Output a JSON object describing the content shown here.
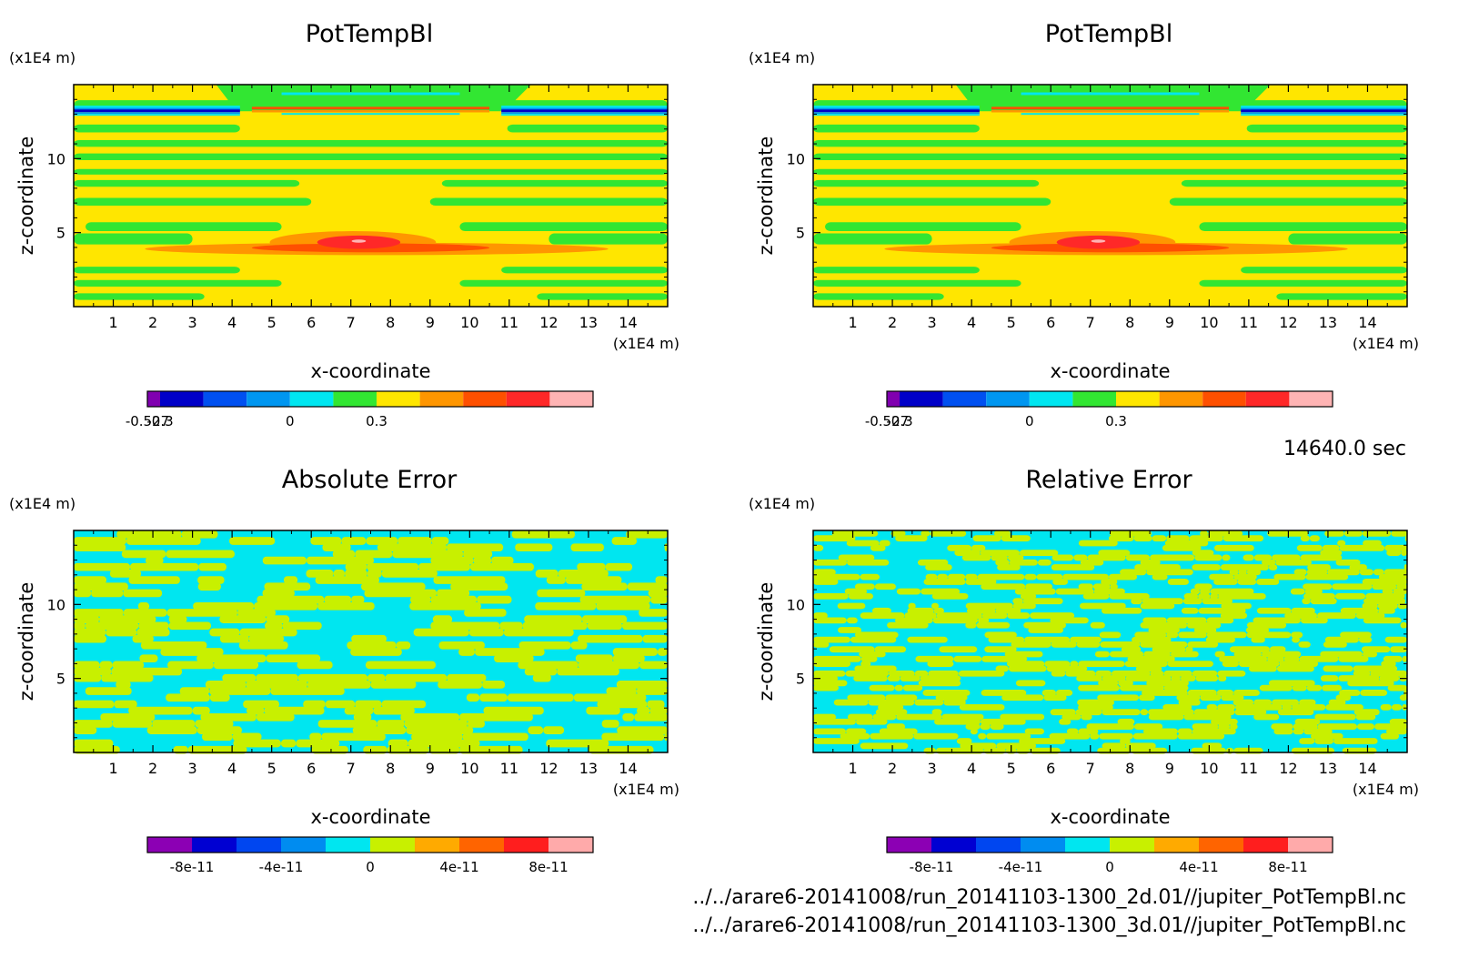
{
  "time_label": "14640.0 sec",
  "footer": {
    "file1": "../../arare6-20141008/run_20141103-1300_2d.01//jupiter_PotTempBl.nc",
    "file2": "../../arare6-20141008/run_20141103-1300_3d.01//jupiter_PotTempBl.nc"
  },
  "chart_data": [
    {
      "type": "heatmap",
      "title": "PotTempBl",
      "xlabel": "x-coordinate",
      "ylabel": "z-coordinate",
      "x_unit": "(x1E4 m)",
      "y_unit": "(x1E4 m)",
      "x_ticks": [
        "1",
        "2",
        "3",
        "4",
        "5",
        "6",
        "7",
        "8",
        "9",
        "10",
        "11",
        "12",
        "13",
        "14"
      ],
      "y_ticks": [
        "5",
        "10"
      ],
      "xlim": [
        0,
        15
      ],
      "ylim": [
        0,
        15
      ],
      "colorbar": {
        "levels": [
          -0.527,
          -0.45,
          -0.375,
          -0.3,
          -0.225,
          -0.15,
          -0.075,
          0,
          0.075,
          0.15,
          0.225,
          0.3,
          0.375,
          0.45
        ],
        "labels": [
          "-0.527",
          "-0.3",
          "0",
          "0.3"
        ],
        "colors": [
          "#8000b0",
          "#0000c8",
          "#0050f0",
          "#0096f0",
          "#00e6f0",
          "#32e632",
          "#ffe600",
          "#ff9600",
          "#ff5000",
          "#ff2828",
          "#ffb4b4"
        ]
      }
    },
    {
      "type": "heatmap",
      "title": "PotTempBl",
      "xlabel": "x-coordinate",
      "ylabel": "z-coordinate",
      "x_unit": "(x1E4 m)",
      "y_unit": "(x1E4 m)",
      "x_ticks": [
        "1",
        "2",
        "3",
        "4",
        "5",
        "6",
        "7",
        "8",
        "9",
        "10",
        "11",
        "12",
        "13",
        "14"
      ],
      "y_ticks": [
        "5",
        "10"
      ],
      "xlim": [
        0,
        15
      ],
      "ylim": [
        0,
        15
      ],
      "colorbar": {
        "labels": [
          "-0.527",
          "-0.3",
          "0",
          "0.3"
        ],
        "colors": [
          "#8000b0",
          "#0000c8",
          "#0050f0",
          "#0096f0",
          "#00e6f0",
          "#32e632",
          "#ffe600",
          "#ff9600",
          "#ff5000",
          "#ff2828",
          "#ffb4b4"
        ]
      }
    },
    {
      "type": "heatmap",
      "title": "Absolute Error",
      "xlabel": "x-coordinate",
      "ylabel": "z-coordinate",
      "x_unit": "(x1E4 m)",
      "y_unit": "(x1E4 m)",
      "x_ticks": [
        "1",
        "2",
        "3",
        "4",
        "5",
        "6",
        "7",
        "8",
        "9",
        "10",
        "11",
        "12",
        "13",
        "14"
      ],
      "y_ticks": [
        "5",
        "10"
      ],
      "xlim": [
        0,
        15
      ],
      "ylim": [
        0,
        15
      ],
      "colorbar": {
        "labels": [
          "-8e-11",
          "-4e-11",
          "0",
          "4e-11",
          "8e-11"
        ],
        "colors": [
          "#8c00b4",
          "#0000d2",
          "#0046f0",
          "#008cf0",
          "#00e6f0",
          "#c8f000",
          "#ffaa00",
          "#ff6400",
          "#ff1e1e",
          "#ffaaaa"
        ]
      }
    },
    {
      "type": "heatmap",
      "title": "Relative Error",
      "xlabel": "x-coordinate",
      "ylabel": "z-coordinate",
      "x_unit": "(x1E4 m)",
      "y_unit": "(x1E4 m)",
      "x_ticks": [
        "1",
        "2",
        "3",
        "4",
        "5",
        "6",
        "7",
        "8",
        "9",
        "10",
        "11",
        "12",
        "13",
        "14"
      ],
      "y_ticks": [
        "5",
        "10"
      ],
      "xlim": [
        0,
        15
      ],
      "ylim": [
        0,
        15
      ],
      "colorbar": {
        "labels": [
          "-8e-11",
          "-4e-11",
          "0",
          "4e-11",
          "8e-11"
        ],
        "colors": [
          "#8c00b4",
          "#0000d2",
          "#0046f0",
          "#008cf0",
          "#00e6f0",
          "#c8f000",
          "#ffaa00",
          "#ff6400",
          "#ff1e1e",
          "#ffaaaa"
        ]
      }
    }
  ]
}
